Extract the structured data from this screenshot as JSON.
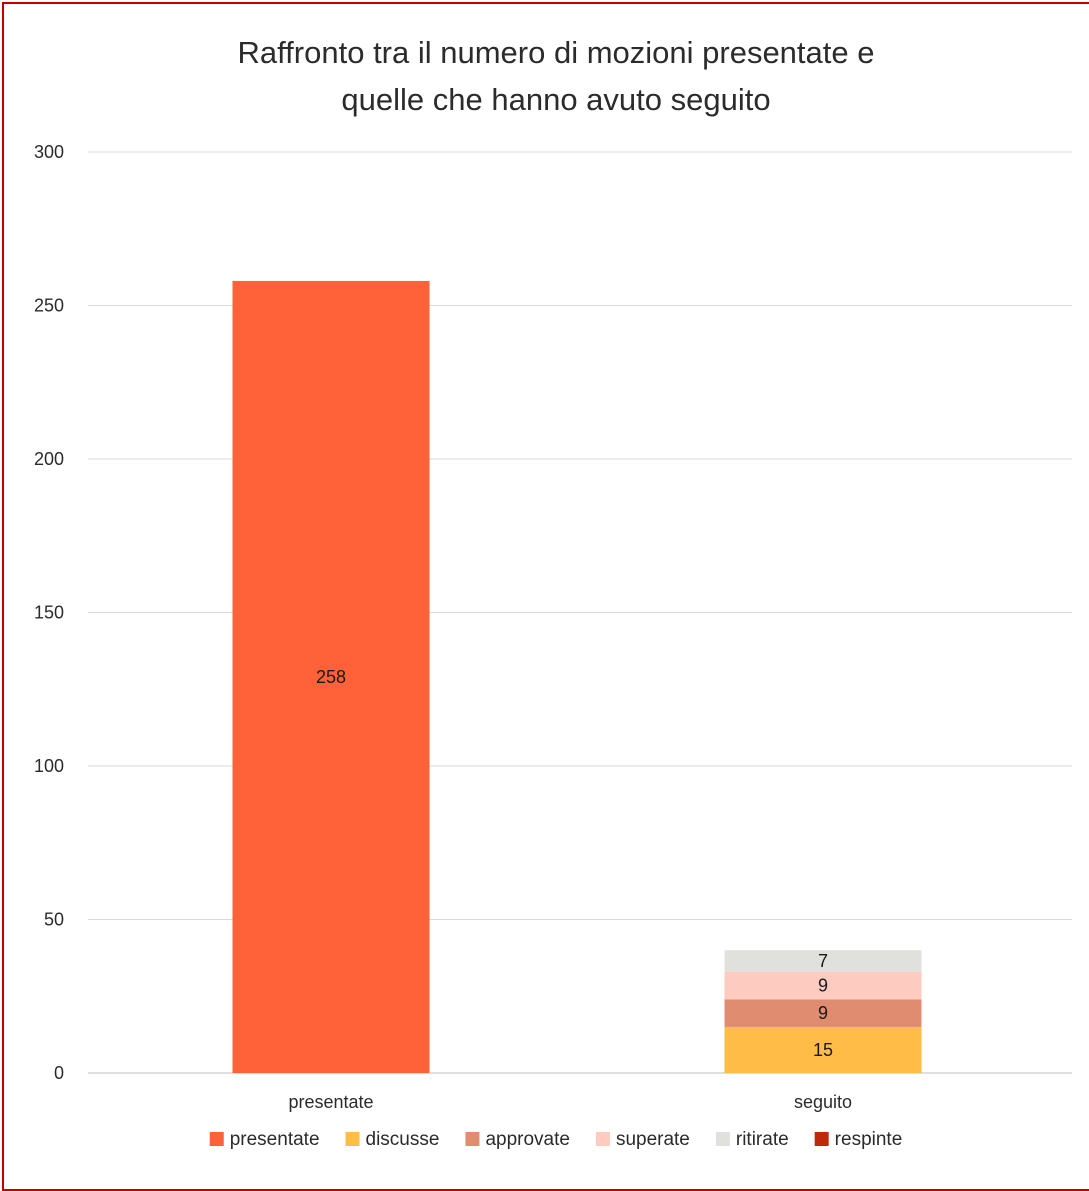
{
  "chart_data": {
    "type": "bar",
    "stacked": true,
    "title": "Raffronto tra il numero di mozioni presentate e quelle che hanno avuto seguito",
    "title_lines": [
      "Raffronto tra il numero di mozioni presentate e",
      "quelle che hanno avuto seguito"
    ],
    "categories": [
      "presentate",
      "seguito"
    ],
    "ylim": [
      0,
      300
    ],
    "yticks": [
      0,
      50,
      100,
      150,
      200,
      250,
      300
    ],
    "grid": true,
    "legend_position": "bottom",
    "series": [
      {
        "name": "presentate",
        "color": "#ff6139",
        "values": [
          258,
          null
        ]
      },
      {
        "name": "discusse",
        "color": "#ffbd47",
        "values": [
          null,
          15
        ]
      },
      {
        "name": "approvate",
        "color": "#e08c70",
        "values": [
          null,
          9
        ]
      },
      {
        "name": "superate",
        "color": "#fdcbbf",
        "values": [
          null,
          9
        ]
      },
      {
        "name": "ritirate",
        "color": "#e0e0dc",
        "values": [
          null,
          7
        ]
      },
      {
        "name": "respinte",
        "color": "#c0280c",
        "values": [
          null,
          null
        ]
      }
    ]
  },
  "colors": {
    "border": "#c00000",
    "gridline": "#d9d9d9",
    "axis": "#bfbfbf"
  }
}
